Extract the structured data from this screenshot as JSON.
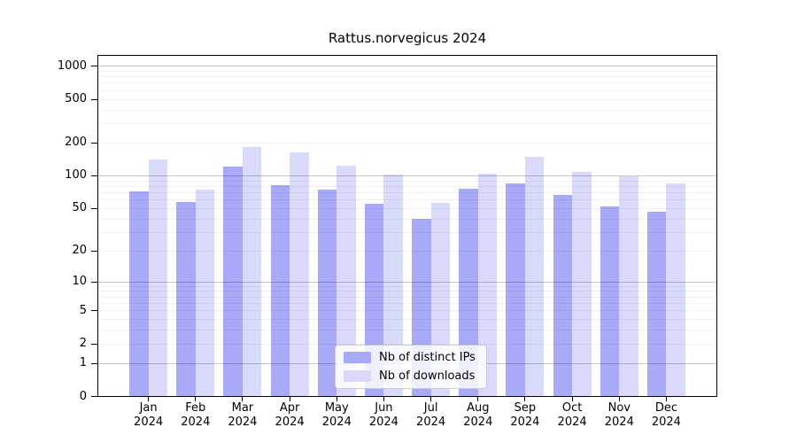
{
  "title": "Rattus.norvegicus 2024",
  "chart_data": {
    "type": "bar",
    "title": "Rattus.norvegicus 2024",
    "categories": [
      "Jan 2024",
      "Feb 2024",
      "Mar 2024",
      "Apr 2024",
      "May 2024",
      "Jun 2024",
      "Jul 2024",
      "Aug 2024",
      "Sep 2024",
      "Oct 2024",
      "Nov 2024",
      "Dec 2024"
    ],
    "series": [
      {
        "name": "Nb of distinct IPs",
        "color": "#a8aaf9",
        "values": [
          72,
          57,
          121,
          81,
          74,
          55,
          40,
          76,
          85,
          66,
          52,
          46
        ]
      },
      {
        "name": "Nb of downloads",
        "color": "#d9dafb",
        "values": [
          140,
          74,
          183,
          162,
          123,
          101,
          56,
          104,
          147,
          108,
          99,
          85
        ]
      }
    ],
    "yscale": "log10(value+1)",
    "yticks": [
      1000,
      500,
      200,
      100,
      50,
      20,
      10,
      5,
      2,
      1,
      0
    ],
    "ylim": [
      0,
      1230
    ],
    "grid": "horizontal, major at decades + faint minors, drawn over bars",
    "legend_position": "lower center",
    "xlabel": "",
    "ylabel": ""
  },
  "colors": {
    "bar_distinct_ips": "#a8aaf9",
    "bar_downloads": "#d9dafb",
    "grid_major": "rgba(0,0,0,0.22)",
    "grid_minor": "rgba(0,0,0,0.06)",
    "spine": "#000000",
    "legend_border": "#cccccc",
    "background": "#ffffff"
  }
}
